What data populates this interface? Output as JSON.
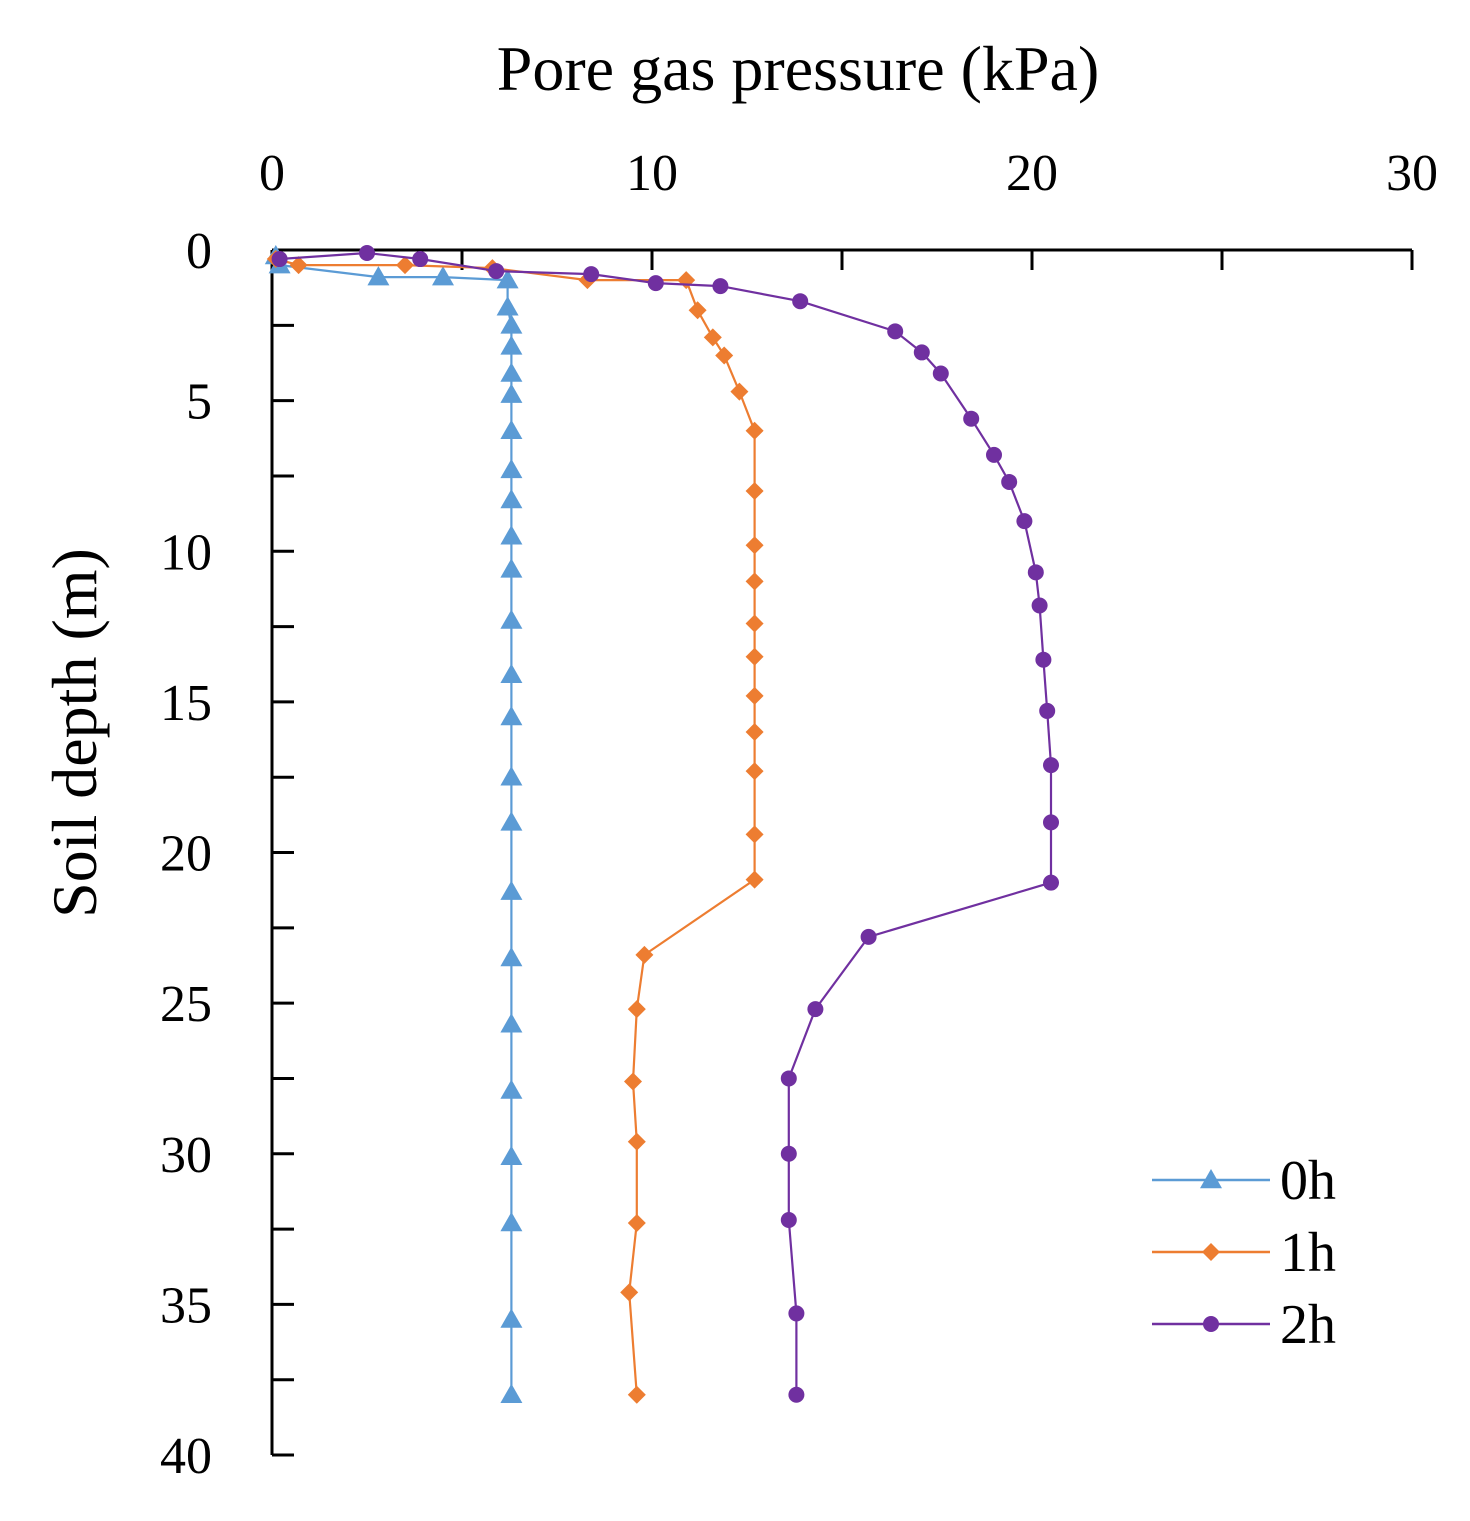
{
  "chart_data": {
    "type": "line",
    "title": "",
    "xlabel": "Pore gas pressure (kPa)",
    "ylabel": "Soil depth (m)",
    "xlim": [
      0,
      30
    ],
    "ylim": [
      0,
      40
    ],
    "x_axis_position": "top",
    "y_axis_inverted": true,
    "x_ticks": [
      0,
      10,
      20,
      30
    ],
    "x_tick_labels": [
      "0",
      "10",
      "20",
      "30"
    ],
    "y_ticks": [
      0,
      5,
      10,
      15,
      20,
      25,
      30,
      35,
      40
    ],
    "y_tick_labels": [
      "0",
      "5",
      "10",
      "15",
      "20",
      "25",
      "30",
      "35",
      "40"
    ],
    "y_minor_ticks": [
      2.5,
      7.5,
      12.5,
      17.5,
      22.5,
      27.5,
      32.5,
      37.5
    ],
    "grid": false,
    "legend_position": "bottom-right",
    "series": [
      {
        "name": "0h",
        "color": "#5b9bd5",
        "marker": "triangle",
        "points": [
          [
            0.1,
            0.2
          ],
          [
            0.2,
            0.5
          ],
          [
            2.8,
            0.9
          ],
          [
            4.5,
            0.9
          ],
          [
            6.2,
            1.0
          ],
          [
            6.2,
            1.9
          ],
          [
            6.3,
            2.5
          ],
          [
            6.3,
            3.2
          ],
          [
            6.3,
            4.1
          ],
          [
            6.3,
            4.8
          ],
          [
            6.3,
            6.0
          ],
          [
            6.3,
            7.3
          ],
          [
            6.3,
            8.3
          ],
          [
            6.3,
            9.5
          ],
          [
            6.3,
            10.6
          ],
          [
            6.3,
            12.3
          ],
          [
            6.3,
            14.1
          ],
          [
            6.3,
            15.5
          ],
          [
            6.3,
            17.5
          ],
          [
            6.3,
            19.0
          ],
          [
            6.3,
            21.3
          ],
          [
            6.3,
            23.5
          ],
          [
            6.3,
            25.7
          ],
          [
            6.3,
            27.9
          ],
          [
            6.3,
            30.1
          ],
          [
            6.3,
            32.3
          ],
          [
            6.3,
            35.5
          ],
          [
            6.3,
            38.0
          ]
        ]
      },
      {
        "name": "1h",
        "color": "#ed7d31",
        "marker": "diamond",
        "points": [
          [
            0.1,
            0.3
          ],
          [
            0.7,
            0.5
          ],
          [
            3.5,
            0.5
          ],
          [
            5.8,
            0.6
          ],
          [
            8.3,
            1.0
          ],
          [
            10.9,
            1.0
          ],
          [
            11.2,
            2.0
          ],
          [
            11.6,
            2.9
          ],
          [
            11.9,
            3.5
          ],
          [
            12.3,
            4.7
          ],
          [
            12.7,
            6.0
          ],
          [
            12.7,
            8.0
          ],
          [
            12.7,
            9.8
          ],
          [
            12.7,
            11.0
          ],
          [
            12.7,
            12.4
          ],
          [
            12.7,
            13.5
          ],
          [
            12.7,
            14.8
          ],
          [
            12.7,
            16.0
          ],
          [
            12.7,
            17.3
          ],
          [
            12.7,
            19.4
          ],
          [
            12.7,
            20.9
          ],
          [
            9.8,
            23.4
          ],
          [
            9.6,
            25.2
          ],
          [
            9.5,
            27.6
          ],
          [
            9.6,
            29.6
          ],
          [
            9.6,
            32.3
          ],
          [
            9.4,
            34.6
          ],
          [
            9.6,
            38.0
          ]
        ]
      },
      {
        "name": "2h",
        "color": "#7030a0",
        "marker": "circle",
        "points": [
          [
            0.2,
            0.3
          ],
          [
            2.5,
            0.1
          ],
          [
            3.9,
            0.3
          ],
          [
            5.9,
            0.7
          ],
          [
            8.4,
            0.8
          ],
          [
            10.1,
            1.1
          ],
          [
            11.8,
            1.2
          ],
          [
            13.9,
            1.7
          ],
          [
            16.4,
            2.7
          ],
          [
            17.1,
            3.4
          ],
          [
            17.6,
            4.1
          ],
          [
            18.4,
            5.6
          ],
          [
            19.0,
            6.8
          ],
          [
            19.4,
            7.7
          ],
          [
            19.8,
            9.0
          ],
          [
            20.1,
            10.7
          ],
          [
            20.2,
            11.8
          ],
          [
            20.3,
            13.6
          ],
          [
            20.4,
            15.3
          ],
          [
            20.5,
            17.1
          ],
          [
            20.5,
            19.0
          ],
          [
            20.5,
            21.0
          ],
          [
            15.7,
            22.8
          ],
          [
            14.3,
            25.2
          ],
          [
            13.6,
            27.5
          ],
          [
            13.6,
            30.0
          ],
          [
            13.6,
            32.2
          ],
          [
            13.8,
            35.3
          ],
          [
            13.8,
            38.0
          ]
        ]
      }
    ]
  }
}
